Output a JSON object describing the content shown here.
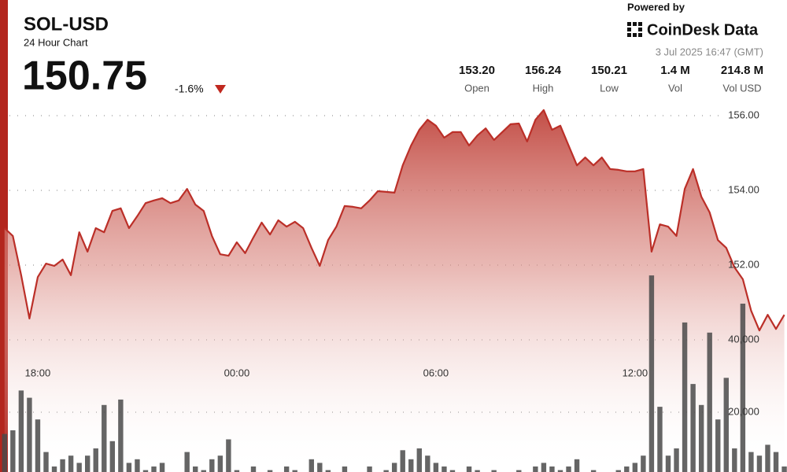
{
  "chart_data": {
    "type": "line",
    "title": "SOL-USD",
    "subtitle": "24 Hour Chart",
    "price": "150.75",
    "change": "-1.6%",
    "stats": [
      {
        "value": "153.20",
        "label": "Open"
      },
      {
        "value": "156.24",
        "label": "High"
      },
      {
        "value": "150.21",
        "label": "Low"
      },
      {
        "value": "1.4 M",
        "label": "Vol"
      },
      {
        "value": "214.8 M",
        "label": "Vol USD"
      }
    ],
    "powered_by": "Powered by",
    "brand": "CoinDesk Data",
    "timestamp": "3 Jul 2025 16:47 (GMT)",
    "color": "#bb2f28",
    "volume_color": "#4a4a4a",
    "grid": true,
    "categories": [
      null,
      null,
      null,
      null,
      "18:00",
      null,
      null,
      null,
      null,
      null,
      null,
      null,
      null,
      null,
      null,
      null,
      null,
      null,
      null,
      null,
      null,
      null,
      null,
      null,
      null,
      null,
      null,
      null,
      "00:00",
      null,
      null,
      null,
      null,
      null,
      null,
      null,
      null,
      null,
      null,
      null,
      null,
      null,
      null,
      null,
      null,
      null,
      null,
      null,
      null,
      null,
      null,
      null,
      "06:00",
      null,
      null,
      null,
      null,
      null,
      null,
      null,
      null,
      null,
      null,
      null,
      null,
      null,
      null,
      null,
      null,
      null,
      null,
      null,
      null,
      null,
      null,
      null,
      "12:00",
      null,
      null,
      null,
      null,
      null,
      null,
      null,
      null,
      null,
      null,
      null,
      null,
      null,
      null,
      null,
      null,
      null,
      null
    ],
    "values": [
      152.99,
      152.78,
      151.73,
      150.57,
      151.68,
      152.04,
      151.98,
      152.15,
      151.73,
      152.88,
      152.36,
      152.99,
      152.88,
      153.45,
      153.52,
      152.99,
      153.31,
      153.66,
      153.73,
      153.79,
      153.66,
      153.73,
      154.04,
      153.62,
      153.45,
      152.78,
      152.29,
      152.25,
      152.61,
      152.32,
      152.74,
      153.14,
      152.82,
      153.2,
      153.03,
      153.16,
      152.99,
      152.46,
      151.98,
      152.67,
      153.03,
      153.58,
      153.56,
      153.52,
      153.73,
      153.98,
      153.96,
      153.94,
      154.67,
      155.2,
      155.62,
      155.89,
      155.73,
      155.41,
      155.56,
      155.56,
      155.2,
      155.47,
      155.66,
      155.35,
      155.56,
      155.77,
      155.79,
      155.31,
      155.89,
      156.15,
      155.62,
      155.73,
      155.2,
      154.67,
      154.88,
      154.67,
      154.88,
      154.57,
      154.55,
      154.51,
      154.51,
      154.57,
      152.36,
      153.09,
      153.03,
      152.78,
      154.04,
      154.57,
      153.83,
      153.41,
      152.67,
      152.46,
      151.94,
      151.62,
      150.78,
      150.25,
      150.67,
      150.29,
      150.67
    ],
    "volumes": [
      14000,
      15000,
      26000,
      24000,
      18000,
      9000,
      5000,
      7000,
      8000,
      6000,
      8000,
      10000,
      22000,
      12000,
      23500,
      6000,
      7000,
      4000,
      5000,
      6000,
      3000,
      2000,
      9000,
      5000,
      4000,
      7000,
      8000,
      12500,
      4000,
      3000,
      5000,
      2000,
      4000,
      3000,
      5000,
      4000,
      3000,
      7000,
      6000,
      4000,
      3000,
      5000,
      2000,
      3000,
      5000,
      3000,
      4000,
      6000,
      9500,
      7000,
      10000,
      8000,
      6000,
      5000,
      4000,
      3000,
      5000,
      4000,
      3000,
      4000,
      2000,
      3000,
      4000,
      3000,
      5000,
      6000,
      5000,
      4000,
      5000,
      7000,
      3000,
      4000,
      2000,
      3000,
      4000,
      5000,
      6000,
      8000,
      57800,
      21500,
      8000,
      10000,
      44800,
      27800,
      22000,
      42000,
      18000,
      29500,
      10000,
      50000,
      9000,
      8000,
      11000,
      9000,
      5000
    ],
    "ylim": [
      150,
      156
    ],
    "yticks": [
      {
        "value": 156,
        "label": "156.00"
      },
      {
        "value": 154,
        "label": "154.00"
      },
      {
        "value": 152,
        "label": "152.00"
      }
    ],
    "y2lim": [
      0,
      40000
    ],
    "y2ticks": [
      {
        "value": 40000,
        "label": "40,000"
      },
      {
        "value": 20000,
        "label": "20,000"
      }
    ]
  }
}
